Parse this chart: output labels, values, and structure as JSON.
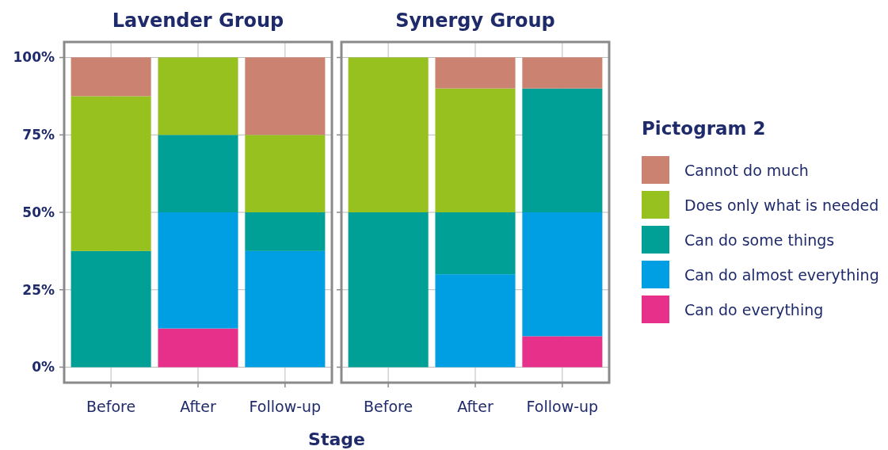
{
  "chart_data": [
    {
      "type": "bar",
      "title": "Lavender Group",
      "xlabel": "Stage",
      "categories": [
        "Before",
        "After",
        "Follow-up"
      ],
      "stacked": true,
      "ylim": [
        -5,
        105
      ],
      "yticks": [
        {
          "value": 0,
          "label": "0%"
        },
        {
          "value": 25,
          "label": "25%"
        },
        {
          "value": 50,
          "label": "50%"
        },
        {
          "value": 75,
          "label": "75%"
        },
        {
          "value": 100,
          "label": "100%"
        }
      ],
      "grid": true,
      "legend": false,
      "series": [
        {
          "color": "#e6308a",
          "values": [
            0,
            12.5,
            0
          ]
        },
        {
          "color": "#009fe3",
          "values": [
            0,
            37.5,
            37.5
          ]
        },
        {
          "color": "#00a096",
          "values": [
            37.5,
            25,
            12.5
          ]
        },
        {
          "color": "#97c11f",
          "values": [
            50,
            25,
            25
          ]
        },
        {
          "color": "#cc8270",
          "values": [
            12.5,
            0,
            25
          ]
        }
      ]
    },
    {
      "type": "bar",
      "title": "Synergy Group",
      "categories": [
        "Before",
        "After",
        "Follow-up"
      ],
      "stacked": true,
      "ylim": [
        -5,
        105
      ],
      "yticks": [
        {
          "value": 0,
          "label": null
        },
        {
          "value": 25,
          "label": null
        },
        {
          "value": 50,
          "label": null
        },
        {
          "value": 75,
          "label": null
        },
        {
          "value": 100,
          "label": null
        }
      ],
      "tick_labels": "x",
      "grid": true,
      "legend": "right",
      "legend_title": "Pictogram 2",
      "series": [
        {
          "name": "Can do everything",
          "color": "#e6308a",
          "values": [
            0,
            0,
            10
          ]
        },
        {
          "name": "Can do almost everything",
          "color": "#009fe3",
          "values": [
            0,
            30,
            40
          ]
        },
        {
          "name": "Can do some things",
          "color": "#00a096",
          "values": [
            50,
            20,
            40
          ]
        },
        {
          "name": "Does only what is needed",
          "color": "#97c11f",
          "values": [
            50,
            40,
            0
          ]
        },
        {
          "name": "Cannot do much",
          "color": "#cc8270",
          "values": [
            0,
            10,
            10
          ]
        }
      ]
    }
  ]
}
